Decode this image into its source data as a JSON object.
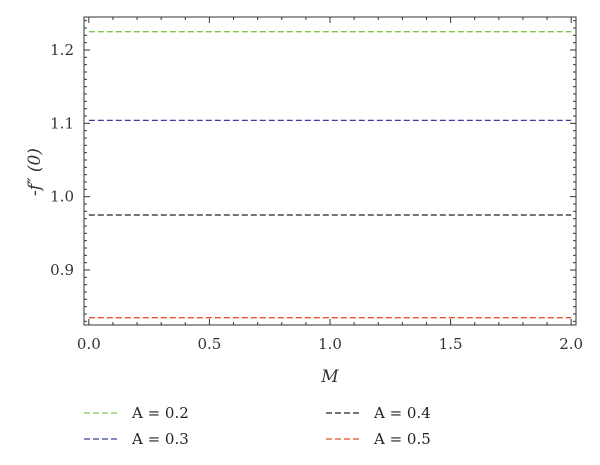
{
  "chart_data": {
    "type": "line",
    "xlabel": "M",
    "ylabel": "-f″ (0)",
    "xlim": [
      -0.02,
      2.02
    ],
    "ylim": [
      0.825,
      1.245
    ],
    "x_ticks": [
      0.0,
      0.5,
      1.0,
      1.5,
      2.0
    ],
    "x_tick_labels": [
      "0.0",
      "0.5",
      "1.0",
      "1.5",
      "2.0"
    ],
    "y_ticks": [
      0.9,
      1.0,
      1.1,
      1.2
    ],
    "y_tick_labels": [
      "0.9",
      "1.0",
      "1.1",
      "1.2"
    ],
    "grid": false,
    "legend_placement": "bottom",
    "series": [
      {
        "name": "A = 0.2",
        "color": "#7fc650",
        "style": "dashed",
        "x": [
          0.0,
          2.0
        ],
        "y": [
          1.225,
          1.225
        ]
      },
      {
        "name": "A = 0.3",
        "color": "#3b3d9a",
        "style": "dashed",
        "x": [
          0.0,
          2.0
        ],
        "y": [
          1.104,
          1.104
        ]
      },
      {
        "name": "A = 0.4",
        "color": "#222222",
        "style": "dashed",
        "x": [
          0.0,
          2.0
        ],
        "y": [
          0.975,
          0.975
        ]
      },
      {
        "name": "A = 0.5",
        "color": "#e0522a",
        "style": "dashed",
        "x": [
          0.0,
          2.0
        ],
        "y": [
          0.835,
          0.835
        ]
      }
    ]
  }
}
